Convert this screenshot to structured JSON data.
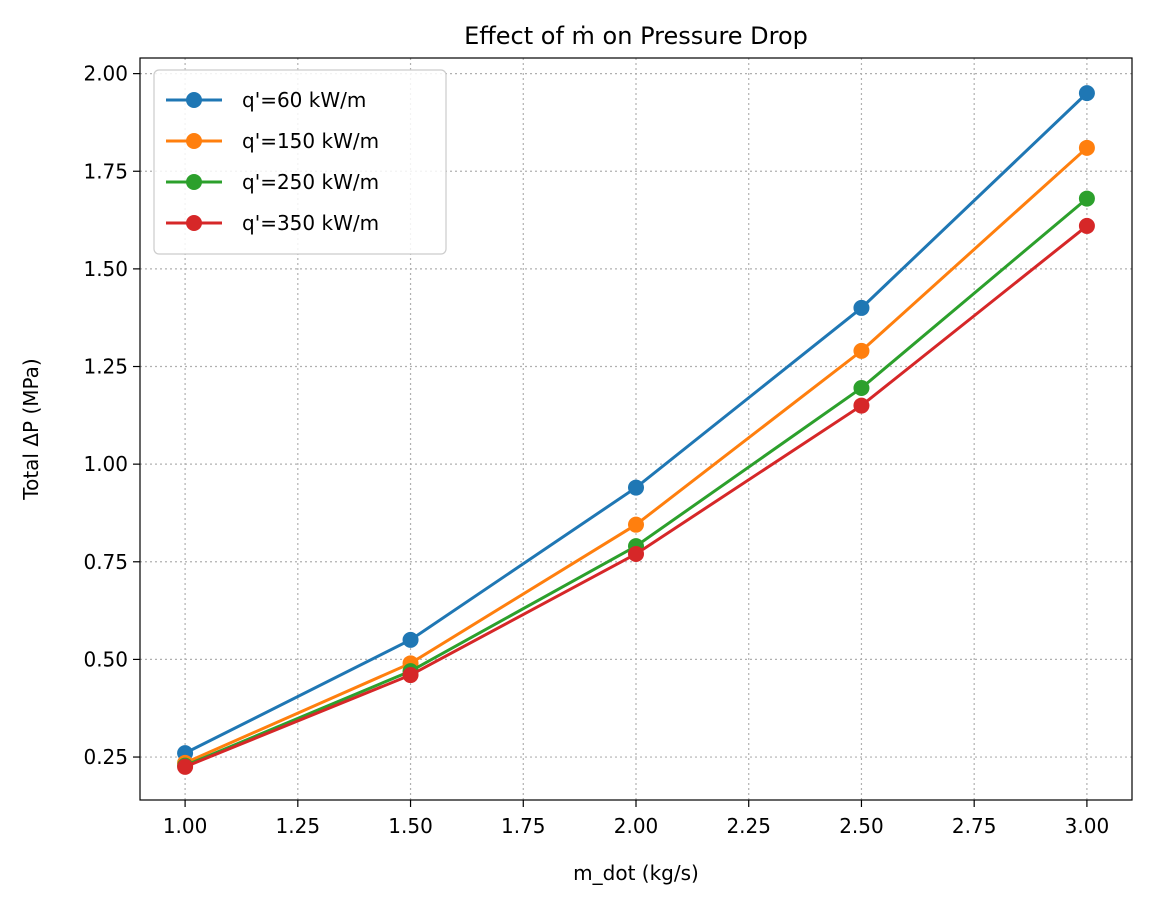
{
  "chart_data": {
    "type": "line",
    "title": "Effect of ṁ on Pressure Drop",
    "xlabel": "m_dot (kg/s)",
    "ylabel": "Total ΔP (MPa)",
    "x": [
      1.0,
      1.5,
      2.0,
      2.5,
      3.0
    ],
    "xlim": [
      0.9,
      3.1
    ],
    "ylim": [
      0.14,
      2.04
    ],
    "xticks": [
      "1.00",
      "1.25",
      "1.50",
      "1.75",
      "2.00",
      "2.25",
      "2.50",
      "2.75",
      "3.00"
    ],
    "yticks": [
      "0.25",
      "0.50",
      "0.75",
      "1.00",
      "1.25",
      "1.50",
      "1.75",
      "2.00"
    ],
    "grid": true,
    "grid_style": "dotted",
    "legend_position": "top-left",
    "series": [
      {
        "name": "q'=60 kW/m",
        "color": "#1f77b4",
        "values": [
          0.26,
          0.55,
          0.94,
          1.4,
          1.95
        ]
      },
      {
        "name": "q'=150 kW/m",
        "color": "#ff7f0e",
        "values": [
          0.235,
          0.49,
          0.845,
          1.29,
          1.81
        ]
      },
      {
        "name": "q'=250 kW/m",
        "color": "#2ca02c",
        "values": [
          0.228,
          0.47,
          0.79,
          1.195,
          1.68
        ]
      },
      {
        "name": "q'=350 kW/m",
        "color": "#d62728",
        "values": [
          0.225,
          0.46,
          0.77,
          1.15,
          1.61
        ]
      }
    ]
  }
}
